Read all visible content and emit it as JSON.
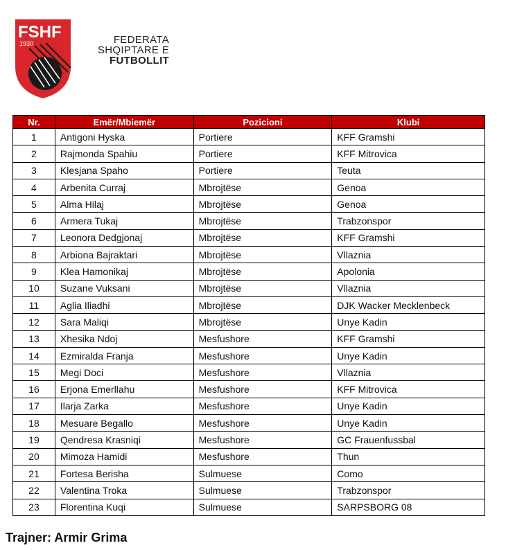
{
  "logo": {
    "text": "FSHF",
    "year": "1930",
    "colors": {
      "red": "#d8262c",
      "black": "#1a1a1a"
    }
  },
  "federation": {
    "line1": "FEDERATA",
    "line2": "SHQIPTARE E",
    "line3": "FUTBOLLIT"
  },
  "table": {
    "header_color": "#c00000",
    "headers": [
      "Nr.",
      "Emër/Mbiemër",
      "Pozicioni",
      "Klubi"
    ],
    "rows": [
      [
        "1",
        "Antigoni Hyska",
        "Portiere",
        "KFF Gramshi"
      ],
      [
        "2",
        "Rajmonda Spahiu",
        "Portiere",
        "KFF Mitrovica"
      ],
      [
        "3",
        "Klesjana Spaho",
        "Portiere",
        "Teuta"
      ],
      [
        "4",
        "Arbenita Curraj",
        "Mbrojtëse",
        "Genoa"
      ],
      [
        "5",
        "Alma Hilaj",
        "Mbrojtëse",
        "Genoa"
      ],
      [
        "6",
        "Armera Tukaj",
        "Mbrojtëse",
        "Trabzonspor"
      ],
      [
        "7",
        "Leonora Dedgjonaj",
        "Mbrojtëse",
        "KFF Gramshi"
      ],
      [
        "8",
        "Arbiona Bajraktari",
        "Mbrojtëse",
        "Vllaznia"
      ],
      [
        "9",
        "Klea Hamonikaj",
        "Mbrojtëse",
        "Apolonia"
      ],
      [
        "10",
        "Suzane Vuksani",
        "Mbrojtëse",
        "Vllaznia"
      ],
      [
        "11",
        "Aglia Iliadhi",
        "Mbrojtëse",
        "DJK Wacker Mecklenbeck"
      ],
      [
        "12",
        "Sara Maliqi",
        "Mbrojtëse",
        "Unye Kadin"
      ],
      [
        "13",
        "Xhesika Ndoj",
        "Mesfushore",
        "KFF Gramshi"
      ],
      [
        "14",
        "Ezmiralda Franja",
        "Mesfushore",
        "Unye Kadin"
      ],
      [
        "15",
        "Megi Doci",
        "Mesfushore",
        "Vllaznia"
      ],
      [
        "16",
        "Erjona Emerllahu",
        "Mesfushore",
        "KFF Mitrovica"
      ],
      [
        "17",
        "Ilarja Zarka",
        "Mesfushore",
        "Unye Kadin"
      ],
      [
        "18",
        "Mesuare Begallo",
        "Mesfushore",
        "Unye Kadin"
      ],
      [
        "19",
        "Qendresa Krasniqi",
        "Mesfushore",
        "GC Frauenfussbal"
      ],
      [
        "20",
        "Mimoza Hamidi",
        "Mesfushore",
        "Thun"
      ],
      [
        "21",
        "Fortesa Berisha",
        "Sulmuese",
        "Como"
      ],
      [
        "22",
        "Valentina Troka",
        "Sulmuese",
        "Trabzonspor"
      ],
      [
        "23",
        "Florentina Kuqi",
        "Sulmuese",
        "SARPSBORG 08"
      ]
    ]
  },
  "trainer": "Trajner: Armir Grima"
}
